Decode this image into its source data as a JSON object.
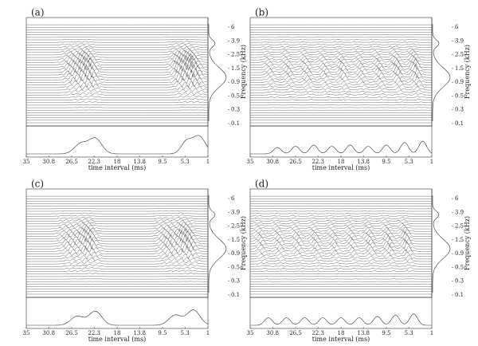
{
  "chart_data": [
    {
      "type": "waterfall",
      "label": "(a)",
      "xlabel": "time interval (ms)",
      "ylabel": "Frequency (kHz)",
      "xlim": [
        35,
        1
      ],
      "xticks": [
        35,
        30.8,
        26.5,
        22.3,
        18,
        13.8,
        9.5,
        5.3,
        1
      ],
      "yticks": [
        0.1,
        0.3,
        0.5,
        0.9,
        1.5,
        2.5,
        3.9,
        6
      ]
    },
    {
      "type": "waterfall",
      "label": "(b)",
      "xlabel": "time interval (ms)",
      "ylabel": "Frequency (kHz)",
      "xlim": [
        35,
        1
      ],
      "xticks": [
        35,
        30.8,
        26.5,
        22.3,
        18,
        13.8,
        9.5,
        5.3,
        1
      ],
      "yticks": [
        0.1,
        0.3,
        0.5,
        0.9,
        1.5,
        2.5,
        3.9,
        6
      ]
    },
    {
      "type": "waterfall",
      "label": "(c)",
      "xlabel": "time interval (ms)",
      "ylabel": "Frequency (kHz)",
      "xlim": [
        35,
        1
      ],
      "xticks": [
        35,
        30.8,
        26.5,
        22.3,
        18,
        13.8,
        9.5,
        5.3,
        1
      ],
      "yticks": [
        0.1,
        0.3,
        0.5,
        0.9,
        1.5,
        2.5,
        3.9,
        6
      ]
    },
    {
      "type": "waterfall",
      "label": "(d)",
      "xlabel": "time interval (ms)",
      "ylabel": "Frequency (kHz)",
      "xlim": [
        35,
        1
      ],
      "xticks": [
        35,
        30.8,
        26.5,
        22.3,
        18,
        13.8,
        9.5,
        5.3,
        1
      ],
      "yticks": [
        0.1,
        0.3,
        0.5,
        0.9,
        1.5,
        2.5,
        3.9,
        6
      ]
    }
  ]
}
